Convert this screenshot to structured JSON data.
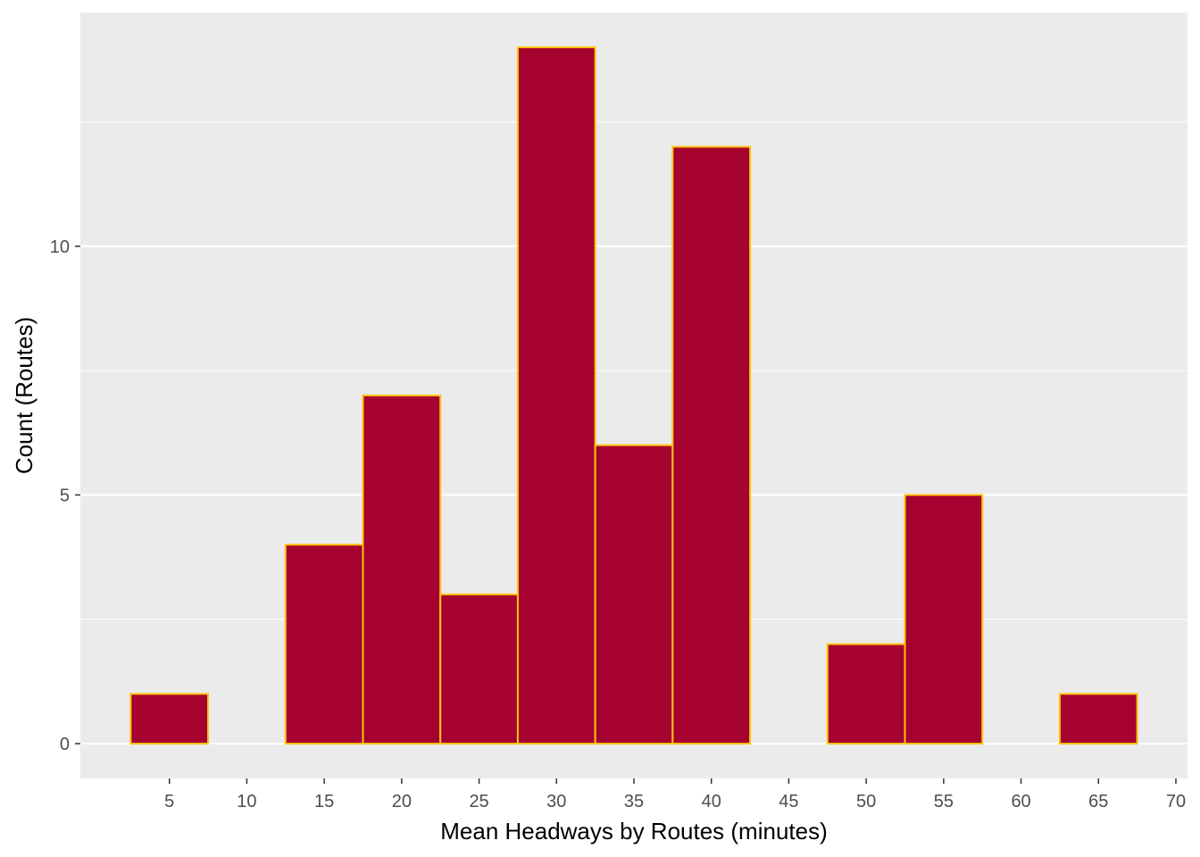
{
  "chart_data": {
    "type": "bar",
    "subtype": "histogram",
    "title": "",
    "xlabel": "Mean Headways by Routes (minutes)",
    "ylabel": "Count (Routes)",
    "bins": [
      {
        "center": 5,
        "count": 1
      },
      {
        "center": 10,
        "count": 0
      },
      {
        "center": 15,
        "count": 4
      },
      {
        "center": 20,
        "count": 7
      },
      {
        "center": 25,
        "count": 3
      },
      {
        "center": 30,
        "count": 14
      },
      {
        "center": 35,
        "count": 6
      },
      {
        "center": 40,
        "count": 12
      },
      {
        "center": 45,
        "count": 0
      },
      {
        "center": 50,
        "count": 2
      },
      {
        "center": 55,
        "count": 5
      },
      {
        "center": 60,
        "count": 0
      },
      {
        "center": 65,
        "count": 1
      }
    ],
    "bin_width": 5,
    "xlim": [
      -0.75,
      70.75
    ],
    "ylim": [
      -0.7,
      14.7
    ],
    "x_ticks": [
      "5",
      "10",
      "15",
      "20",
      "25",
      "30",
      "35",
      "40",
      "45",
      "50",
      "55",
      "60",
      "65",
      "70"
    ],
    "x_tick_values": [
      5,
      10,
      15,
      20,
      25,
      30,
      35,
      40,
      45,
      50,
      55,
      60,
      65,
      70
    ],
    "y_ticks": [
      "0",
      "5",
      "10"
    ],
    "y_tick_values": [
      0,
      5,
      10
    ],
    "grid": true,
    "fill_color": "#A50230",
    "outline_color": "#FFC20E",
    "panel_background": "#EBEBEB",
    "grid_color": "#FFFFFF"
  }
}
